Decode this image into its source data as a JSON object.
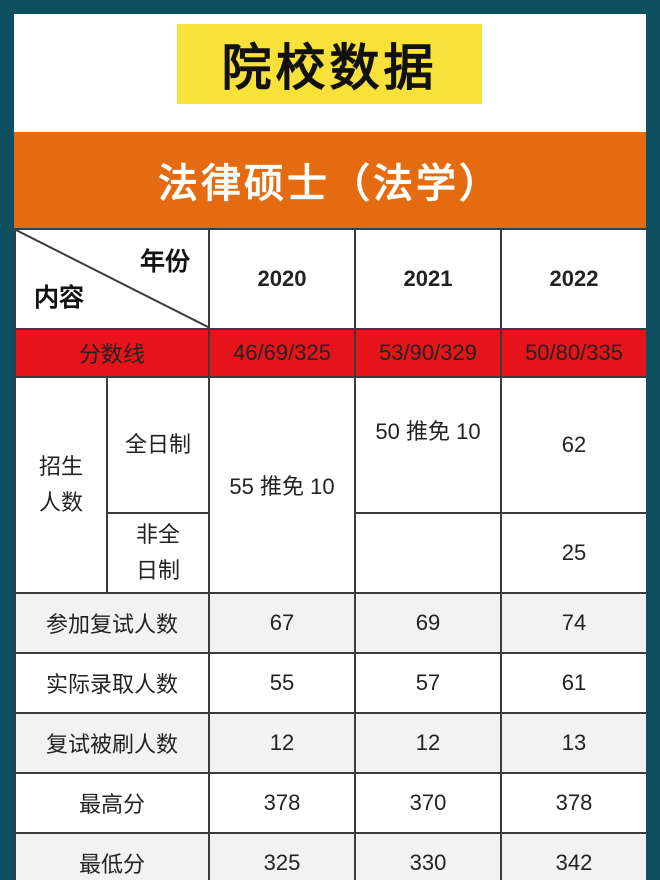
{
  "header": {
    "title": "院校数据",
    "subtitle": "法律硕士（法学）"
  },
  "table": {
    "corner_top": "年份",
    "corner_bottom": "内容",
    "years": [
      "2020",
      "2021",
      "2022"
    ],
    "score_line": {
      "label": "分数线",
      "values": [
        "46/69/325",
        "53/90/329",
        "50/80/335"
      ]
    },
    "enrollment": {
      "label": "招生人数",
      "label_line1": "招生",
      "label_line2": "人数",
      "fulltime_label": "全日制",
      "parttime_label_line1": "非全",
      "parttime_label_line2": "日制",
      "y2020_merged": "55 推免 10",
      "y2021_fulltime": "50 推免 10",
      "y2021_parttime": "",
      "y2022_fulltime": "62",
      "y2022_parttime": "25"
    },
    "rows": [
      {
        "label": "参加复试人数",
        "values": [
          "67",
          "69",
          "74"
        ]
      },
      {
        "label": "实际录取人数",
        "values": [
          "55",
          "57",
          "61"
        ]
      },
      {
        "label": "复试被刷人数",
        "values": [
          "12",
          "12",
          "13"
        ]
      },
      {
        "label": "最高分",
        "values": [
          "378",
          "370",
          "378"
        ]
      },
      {
        "label": "最低分",
        "values": [
          "325",
          "330",
          "342"
        ]
      }
    ]
  },
  "colors": {
    "background": "#0f5060",
    "title_highlight": "#f8e23a",
    "subtitle_bar": "#e46b10",
    "score_row": "#e6141a"
  }
}
